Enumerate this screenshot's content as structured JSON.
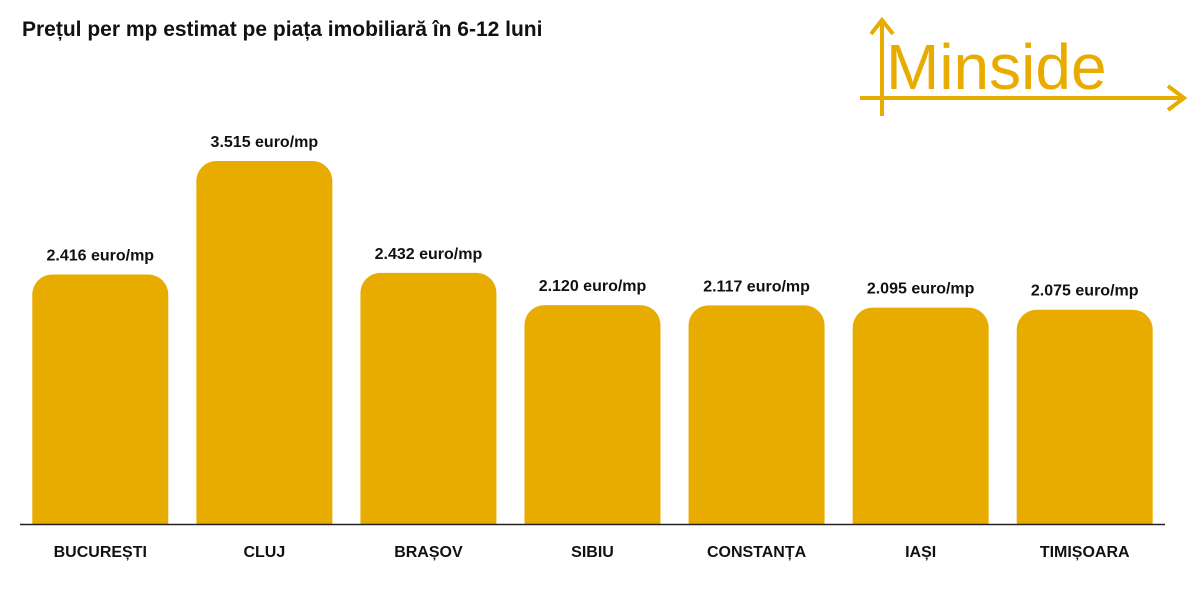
{
  "colors": {
    "bar": "#E8AC00",
    "logo": "#E8AC00",
    "text": "#111111",
    "axis": "#222222"
  },
  "logo": {
    "text": "Minside",
    "icon": "axes-arrows-logo"
  },
  "chart_data": {
    "type": "bar",
    "title": "Prețul per mp estimat pe piața imobiliară în 6-12 luni",
    "xlabel": "",
    "ylabel": "",
    "ylim": [
      0,
      3800
    ],
    "grid": false,
    "categories": [
      "BUCUREȘTI",
      "CLUJ",
      "BRAȘOV",
      "SIBIU",
      "CONSTANȚA",
      "IAȘI",
      "TIMIȘOARA"
    ],
    "values": [
      2416,
      3515,
      2432,
      2120,
      2117,
      2095,
      2075
    ],
    "data_labels": [
      "2.416 euro/mp",
      "3.515 euro/mp",
      "2.432 euro/mp",
      "2.120 euro/mp",
      "2.117 euro/mp",
      "2.095 euro/mp",
      "2.075 euro/mp"
    ]
  }
}
